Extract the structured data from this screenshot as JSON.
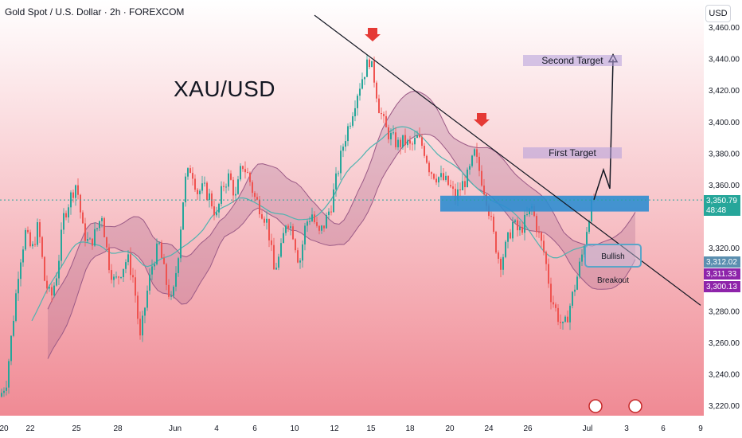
{
  "header": {
    "title": "Gold Spot / U.S. Dollar · 2h · FOREXCOM",
    "currency": "USD"
  },
  "chart_title": "XAU/USD",
  "colors": {
    "background_top": "#ffffff",
    "background_bottom": "#f08a94",
    "up": "#26a69a",
    "down": "#ef5350",
    "zone": "#2f8dd0",
    "trendline": "#131722",
    "cloud": "#9b5a86",
    "ma": "#4fb3b0",
    "arrow": "#e53935"
  },
  "annotations": {
    "second_target": "Second Target",
    "first_target": "First Target",
    "bullish_breakout": "Bullish Breakout"
  },
  "price_tags": {
    "current": "3,350.79",
    "countdown": "48:48",
    "tag_2": "3,312.02",
    "tag_3": "3,311.33",
    "tag_4": "3,300.13"
  },
  "chart_data": {
    "type": "candlestick",
    "title": "XAU/USD",
    "y_axis_labels": [
      "3,460.00",
      "3,440.00",
      "3,420.00",
      "3,400.00",
      "3,380.00",
      "3,360.00",
      "3,320.00",
      "3,280.00",
      "3,260.00",
      "3,240.00",
      "3,220.00"
    ],
    "x_axis_labels": [
      "20",
      "22",
      "25",
      "28",
      "Jun",
      "4",
      "6",
      "10",
      "12",
      "15",
      "18",
      "20",
      "24",
      "26",
      "Jul",
      "3",
      "6",
      "9"
    ],
    "ylim": [
      3215,
      3465
    ],
    "close_path": [
      [
        0,
        3226
      ],
      [
        8,
        3236
      ],
      [
        16,
        3272
      ],
      [
        24,
        3310
      ],
      [
        32,
        3330
      ],
      [
        40,
        3318
      ],
      [
        48,
        3335
      ],
      [
        56,
        3300
      ],
      [
        64,
        3288
      ],
      [
        72,
        3306
      ],
      [
        80,
        3340
      ],
      [
        88,
        3352
      ],
      [
        96,
        3362
      ],
      [
        104,
        3332
      ],
      [
        112,
        3322
      ],
      [
        120,
        3330
      ],
      [
        128,
        3342
      ],
      [
        136,
        3312
      ],
      [
        144,
        3298
      ],
      [
        152,
        3306
      ],
      [
        160,
        3314
      ],
      [
        168,
        3300
      ],
      [
        176,
        3262
      ],
      [
        184,
        3290
      ],
      [
        192,
        3312
      ],
      [
        200,
        3322
      ],
      [
        208,
        3300
      ],
      [
        216,
        3284
      ],
      [
        224,
        3318
      ],
      [
        232,
        3362
      ],
      [
        240,
        3372
      ],
      [
        248,
        3356
      ],
      [
        256,
        3358
      ],
      [
        264,
        3352
      ],
      [
        272,
        3340
      ],
      [
        280,
        3360
      ],
      [
        288,
        3366
      ],
      [
        296,
        3352
      ],
      [
        304,
        3374
      ],
      [
        312,
        3366
      ],
      [
        320,
        3352
      ],
      [
        328,
        3345
      ],
      [
        336,
        3336
      ],
      [
        344,
        3306
      ],
      [
        352,
        3316
      ],
      [
        360,
        3340
      ],
      [
        368,
        3330
      ],
      [
        376,
        3310
      ],
      [
        384,
        3336
      ],
      [
        392,
        3342
      ],
      [
        400,
        3328
      ],
      [
        408,
        3336
      ],
      [
        416,
        3348
      ],
      [
        424,
        3368
      ],
      [
        432,
        3388
      ],
      [
        440,
        3402
      ],
      [
        448,
        3418
      ],
      [
        456,
        3430
      ],
      [
        464,
        3440
      ],
      [
        470,
        3428
      ],
      [
        476,
        3410
      ],
      [
        484,
        3396
      ],
      [
        492,
        3390
      ],
      [
        500,
        3386
      ],
      [
        508,
        3388
      ],
      [
        516,
        3384
      ],
      [
        524,
        3390
      ],
      [
        532,
        3384
      ],
      [
        540,
        3370
      ],
      [
        548,
        3366
      ],
      [
        556,
        3364
      ],
      [
        564,
        3360
      ],
      [
        572,
        3352
      ],
      [
        580,
        3360
      ],
      [
        588,
        3366
      ],
      [
        596,
        3380
      ],
      [
        604,
        3366
      ],
      [
        612,
        3350
      ],
      [
        620,
        3328
      ],
      [
        628,
        3310
      ],
      [
        636,
        3322
      ],
      [
        644,
        3336
      ],
      [
        652,
        3330
      ],
      [
        660,
        3338
      ],
      [
        668,
        3346
      ],
      [
        676,
        3330
      ],
      [
        684,
        3316
      ],
      [
        692,
        3290
      ],
      [
        700,
        3278
      ],
      [
        708,
        3268
      ],
      [
        716,
        3284
      ],
      [
        724,
        3300
      ],
      [
        732,
        3318
      ],
      [
        740,
        3342
      ],
      [
        746,
        3351
      ]
    ],
    "resistance_line": {
      "from": [
        395,
        3468
      ],
      "to": [
        880,
        3284
      ]
    },
    "zone": {
      "x_start": 553,
      "x_end": 815,
      "y_low": 3345,
      "y_high": 3352
    },
    "forecast_path": [
      [
        746,
        3351
      ],
      [
        758,
        3370
      ],
      [
        766,
        3358
      ],
      [
        770,
        3440
      ]
    ]
  }
}
